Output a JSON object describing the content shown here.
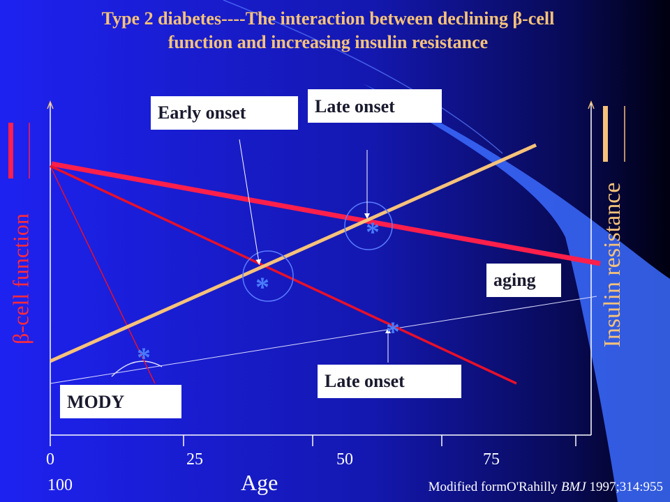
{
  "title": {
    "line1": "Type 2 diabetes----The interaction between declining  β-cell",
    "line2": "function and increasing insulin resistance"
  },
  "axes": {
    "y_left_label": "β-cell function",
    "y_right_label": "Insulin resistance",
    "x_label": "Age",
    "x_ticks": [
      "0",
      "25",
      "50",
      "75"
    ],
    "x_tick_extra": "100"
  },
  "labels": {
    "early_onset": "Early onset",
    "late_onset_top": "Late onset",
    "late_onset_bottom": "Late onset",
    "aging": "aging",
    "mody": "MODY"
  },
  "markers": {
    "star": "*"
  },
  "credit": {
    "prefix": "Modified formO'Rahilly ",
    "journal": "BMJ",
    "suffix": " 1997;314:955"
  },
  "colors": {
    "beta_cell_line": "#ff1f4b",
    "insulin_resistance_line": "#f6c27a",
    "marker_blue": "#4a7cff",
    "background_blue": "#1f1fe6"
  }
}
